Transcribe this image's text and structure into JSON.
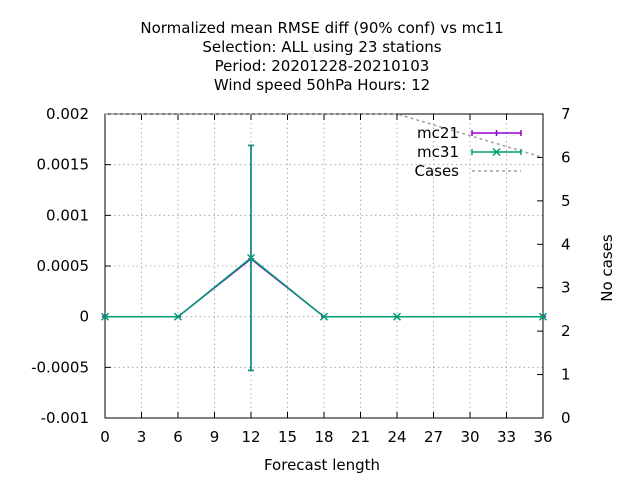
{
  "chart_data": {
    "type": "line",
    "title_lines": [
      "Normalized mean RMSE diff (90% conf) vs mc11",
      "Selection: ALL using    23 stations",
      "Period: 20201228-20210103",
      "Wind speed 50hPa   Hours:  12"
    ],
    "xlabel": "Forecast length",
    "ylabel": "",
    "y2label": "No cases",
    "xlim": [
      0,
      36
    ],
    "ylim": [
      -0.001,
      0.002
    ],
    "y2lim": [
      0,
      7
    ],
    "x_ticks": [
      0,
      3,
      6,
      9,
      12,
      15,
      18,
      21,
      24,
      27,
      30,
      33,
      36
    ],
    "y_ticks": [
      -0.001,
      -0.0005,
      0,
      0.0005,
      0.001,
      0.0015,
      0.002
    ],
    "y_tick_labels": [
      "-0.001",
      "-0.0005",
      "0",
      "0.0005",
      "0.001",
      "0.0015",
      "0.002"
    ],
    "y2_ticks": [
      0,
      1,
      2,
      3,
      4,
      5,
      6,
      7
    ],
    "grid": true,
    "legend_position": "top-right",
    "series": [
      {
        "name": "mc21",
        "color": "#9400d3",
        "x": [
          0,
          6,
          12,
          18,
          24,
          36
        ],
        "y": [
          0,
          0,
          0.00057,
          0,
          0,
          0
        ],
        "err_low": [
          0,
          0,
          -0.00053,
          0,
          0,
          0
        ],
        "err_high": [
          0,
          0,
          0.00169,
          0,
          0,
          0
        ]
      },
      {
        "name": "mc31",
        "color": "#009e73",
        "x": [
          0,
          6,
          12,
          18,
          24,
          36
        ],
        "y": [
          0,
          0,
          0.00058,
          0,
          0,
          0
        ],
        "err_low": [
          0,
          0,
          -0.00053,
          0,
          0,
          0
        ],
        "err_high": [
          0,
          0,
          0.00169,
          0,
          0,
          0
        ]
      },
      {
        "name": "Cases",
        "color": "#a0a0a0",
        "axis": "y2",
        "x": [
          0,
          24,
          36
        ],
        "y": [
          7,
          7,
          6
        ]
      }
    ]
  }
}
